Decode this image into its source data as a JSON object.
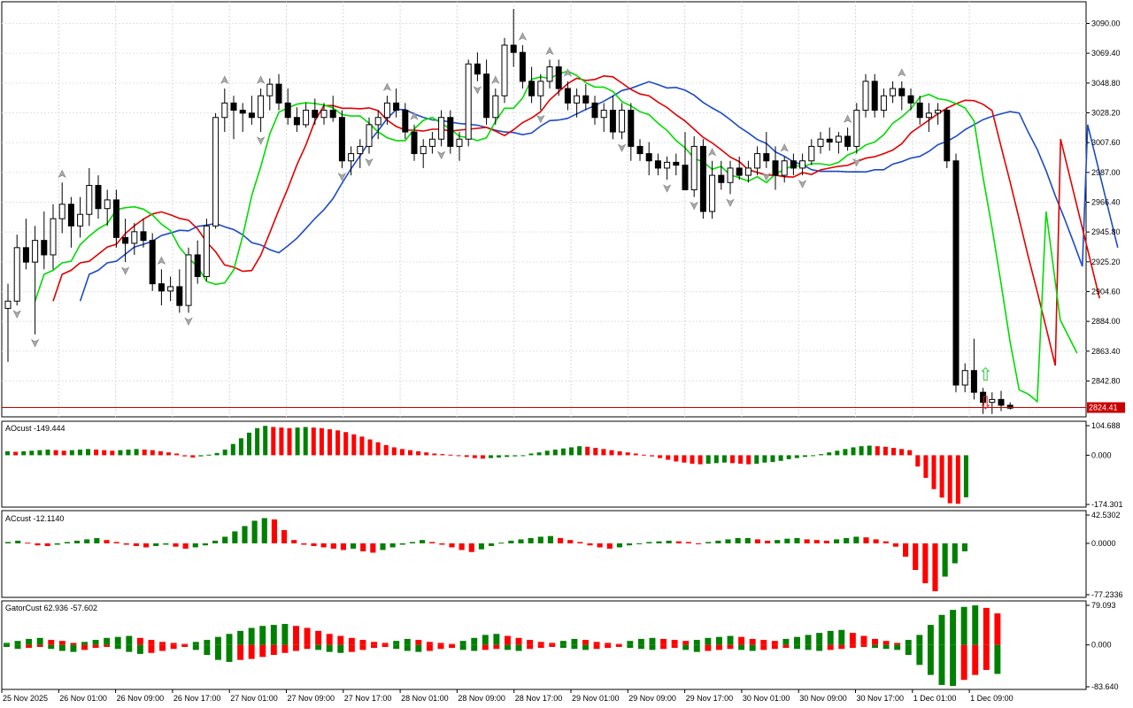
{
  "chart_data": {
    "type": "candlestick",
    "main": {
      "y_ticks": [
        "3090.00",
        "3069.40",
        "3048.80",
        "3028.20",
        "3007.60",
        "2987.00",
        "2966.40",
        "2945.80",
        "2925.20",
        "2904.60",
        "2884.00",
        "2863.40",
        "2842.80"
      ],
      "y_range": [
        2818,
        3105
      ],
      "current_price": "2824.41",
      "candles": [
        [
          2893,
          2910,
          2856,
          2898
        ],
        [
          2898,
          2944,
          2895,
          2935
        ],
        [
          2935,
          2955,
          2920,
          2925
        ],
        [
          2925,
          2950,
          2875,
          2940
        ],
        [
          2940,
          2960,
          2920,
          2930
        ],
        [
          2930,
          2965,
          2920,
          2955
        ],
        [
          2955,
          2980,
          2945,
          2965
        ],
        [
          2965,
          2970,
          2935,
          2950
        ],
        [
          2950,
          2970,
          2942,
          2958
        ],
        [
          2958,
          2990,
          2950,
          2978
        ],
        [
          2978,
          2985,
          2955,
          2962
        ],
        [
          2962,
          2975,
          2950,
          2968
        ],
        [
          2968,
          2975,
          2935,
          2942
        ],
        [
          2942,
          2955,
          2925,
          2938
        ],
        [
          2938,
          2952,
          2930,
          2946
        ],
        [
          2946,
          2955,
          2935,
          2940
        ],
        [
          2940,
          2945,
          2905,
          2910
        ],
        [
          2910,
          2920,
          2895,
          2905
        ],
        [
          2905,
          2915,
          2898,
          2908
        ],
        [
          2908,
          2920,
          2890,
          2895
        ],
        [
          2895,
          2935,
          2890,
          2930
        ],
        [
          2930,
          2940,
          2910,
          2915
        ],
        [
          2915,
          2955,
          2912,
          2950
        ],
        [
          2950,
          3028,
          2948,
          3025
        ],
        [
          3025,
          3045,
          3015,
          3035
        ],
        [
          3035,
          3040,
          3010,
          3030
        ],
        [
          3030,
          3035,
          3015,
          3028
        ],
        [
          3028,
          3040,
          3020,
          3025
        ],
        [
          3025,
          3045,
          3015,
          3040
        ],
        [
          3040,
          3052,
          3030,
          3048
        ],
        [
          3048,
          3055,
          3030,
          3035
        ],
        [
          3035,
          3045,
          3020,
          3025
        ],
        [
          3025,
          3032,
          3015,
          3020
        ],
        [
          3020,
          3035,
          3018,
          3030
        ],
        [
          3030,
          3038,
          3020,
          3025
        ],
        [
          3025,
          3035,
          3020,
          3030
        ],
        [
          3030,
          3040,
          3022,
          3025
        ],
        [
          3025,
          3030,
          2990,
          2995
        ],
        [
          2995,
          3005,
          2985,
          3000
        ],
        [
          3000,
          3010,
          2990,
          3005
        ],
        [
          3005,
          3025,
          3000,
          3020
        ],
        [
          3020,
          3030,
          3010,
          3025
        ],
        [
          3025,
          3040,
          3020,
          3035
        ],
        [
          3035,
          3045,
          3025,
          3030
        ],
        [
          3030,
          3035,
          3010,
          3015
        ],
        [
          3015,
          3020,
          2995,
          3000
        ],
        [
          3000,
          3010,
          2990,
          3005
        ],
        [
          3005,
          3015,
          3000,
          3010
        ],
        [
          3010,
          3030,
          3005,
          3025
        ],
        [
          3025,
          3030,
          3000,
          3005
        ],
        [
          3005,
          3015,
          2995,
          3010
        ],
        [
          3010,
          3065,
          3005,
          3062
        ],
        [
          3062,
          3070,
          3050,
          3055
        ],
        [
          3055,
          3065,
          3020,
          3025
        ],
        [
          3025,
          3045,
          3020,
          3040
        ],
        [
          3040,
          3080,
          3035,
          3075
        ],
        [
          3075,
          3100,
          3060,
          3070
        ],
        [
          3070,
          3075,
          3045,
          3050
        ],
        [
          3050,
          3060,
          3035,
          3040
        ],
        [
          3040,
          3055,
          3030,
          3050
        ],
        [
          3050,
          3065,
          3045,
          3060
        ],
        [
          3060,
          3065,
          3040,
          3045
        ],
        [
          3045,
          3050,
          3030,
          3035
        ],
        [
          3035,
          3045,
          3025,
          3040
        ],
        [
          3040,
          3048,
          3030,
          3035
        ],
        [
          3035,
          3040,
          3020,
          3025
        ],
        [
          3025,
          3035,
          3015,
          3030
        ],
        [
          3030,
          3040,
          3010,
          3015
        ],
        [
          3015,
          3035,
          3010,
          3030
        ],
        [
          3030,
          3035,
          2995,
          3005
        ],
        [
          3005,
          3010,
          2995,
          3000
        ],
        [
          3000,
          3008,
          2985,
          2995
        ],
        [
          2995,
          3000,
          2985,
          2990
        ],
        [
          2990,
          2998,
          2982,
          2994
        ],
        [
          2994,
          3000,
          2985,
          2992
        ],
        [
          2992,
          3015,
          2975,
          2975
        ],
        [
          2975,
          3012,
          2970,
          3005
        ],
        [
          3005,
          3010,
          2955,
          2960
        ],
        [
          2960,
          2995,
          2955,
          2985
        ],
        [
          2985,
          2995,
          2975,
          2980
        ],
        [
          2980,
          2995,
          2972,
          2990
        ],
        [
          2990,
          2998,
          2982,
          2985
        ],
        [
          2985,
          2995,
          2980,
          2990
        ],
        [
          2990,
          3005,
          2985,
          3000
        ],
        [
          3000,
          3015,
          2990,
          2995
        ],
        [
          2995,
          3005,
          2975,
          2985
        ],
        [
          2985,
          2998,
          2980,
          2995
        ],
        [
          2995,
          3000,
          2985,
          2990
        ],
        [
          2990,
          3000,
          2985,
          2995
        ],
        [
          2995,
          3010,
          2992,
          3005
        ],
        [
          3005,
          3015,
          3000,
          3010
        ],
        [
          3010,
          3018,
          3002,
          3008
        ],
        [
          3008,
          3015,
          3000,
          3012
        ],
        [
          3012,
          3018,
          3002,
          3005
        ],
        [
          3005,
          3035,
          3000,
          3030
        ],
        [
          3030,
          3055,
          3025,
          3050
        ],
        [
          3050,
          3055,
          3025,
          3030
        ],
        [
          3030,
          3045,
          3025,
          3040
        ],
        [
          3040,
          3050,
          3035,
          3045
        ],
        [
          3045,
          3050,
          3030,
          3040
        ],
        [
          3040,
          3045,
          3030,
          3035
        ],
        [
          3035,
          3040,
          3020,
          3025
        ],
        [
          3025,
          3035,
          3015,
          3028
        ],
        [
          3028,
          3035,
          3020,
          3030
        ],
        [
          3030,
          3032,
          2990,
          2995
        ],
        [
          2995,
          3000,
          2835,
          2840
        ],
        [
          2840,
          2855,
          2835,
          2850
        ],
        [
          2850,
          2872,
          2830,
          2835
        ],
        [
          2835,
          2838,
          2820,
          2828
        ],
        [
          2828,
          2835,
          2820,
          2830
        ],
        [
          2830,
          2836,
          2822,
          2826
        ],
        [
          2826,
          2828,
          2823,
          2824
        ]
      ],
      "fractal_up_idx": [
        6,
        17,
        24,
        28,
        42,
        45,
        54,
        57,
        60,
        62,
        78,
        86,
        93,
        99
      ],
      "fractal_dn_idx": [
        1,
        3,
        13,
        20,
        28,
        37,
        40,
        48,
        52,
        59,
        68,
        73,
        76,
        80,
        84,
        88,
        94
      ],
      "arrow_up_label": "⇧",
      "arrow_down_label": "⇩",
      "colors": {
        "bull_body": "#ffffff",
        "bear_body": "#000000",
        "jaw": "#1c4bc7",
        "teeth": "#e30000",
        "lips": "#00dc00",
        "price_line": "#c80000",
        "up_arrow": "#2ecc40",
        "down_arrow": "#e02020"
      }
    },
    "ao": {
      "label": "AOcust -149.444",
      "ticks": [
        "104.688",
        "0.000",
        "-174.301"
      ],
      "range": [
        -174.301,
        104.688
      ],
      "values": [
        14,
        12,
        14,
        16,
        18,
        20,
        18,
        16,
        18,
        20,
        22,
        20,
        18,
        16,
        18,
        20,
        22,
        20,
        18,
        14,
        10,
        6,
        -4,
        -8,
        -4,
        2,
        8,
        20,
        40,
        60,
        80,
        96,
        104,
        100,
        98,
        96,
        98,
        100,
        98,
        96,
        92,
        88,
        82,
        74,
        66,
        56,
        46,
        36,
        28,
        22,
        18,
        14,
        10,
        6,
        4,
        2,
        0,
        -6,
        -10,
        -12,
        -10,
        -8,
        -6,
        -4,
        0,
        6,
        10,
        16,
        20,
        24,
        28,
        32,
        30,
        26,
        22,
        18,
        14,
        10,
        6,
        2,
        -4,
        -10,
        -16,
        -22,
        -26,
        -30,
        -32,
        -30,
        -28,
        -26,
        -28,
        -30,
        -32,
        -30,
        -26,
        -24,
        -20,
        -14,
        -10,
        -6,
        -2,
        4,
        10,
        16,
        22,
        28,
        32,
        34,
        32,
        30,
        26,
        22,
        18,
        -40,
        -80,
        -120,
        -150,
        -170,
        -172,
        -149
      ],
      "colors": {
        "up": "#008000",
        "down": "#ff0000"
      }
    },
    "ac": {
      "label": "ACcust -12.1140",
      "ticks": [
        "42.5302",
        "0.0000",
        "-77.2336"
      ],
      "range": [
        -77.2336,
        42.5302
      ],
      "values": [
        2,
        4,
        1,
        -3,
        -4,
        -2,
        2,
        4,
        6,
        8,
        5,
        2,
        -2,
        -4,
        -6,
        -4,
        -2,
        -5,
        -8,
        -6,
        -3,
        4,
        10,
        18,
        26,
        34,
        38,
        36,
        20,
        5,
        -2,
        -4,
        -6,
        -8,
        -10,
        -8,
        -12,
        -14,
        -10,
        -6,
        -2,
        2,
        5,
        2,
        -2,
        -6,
        -10,
        -13,
        -9,
        -4,
        1,
        4,
        6,
        8,
        10,
        11,
        8,
        5,
        2,
        -3,
        -6,
        -8,
        -6,
        -3,
        0,
        2,
        3,
        4,
        3,
        2,
        0,
        2,
        4,
        6,
        8,
        8,
        6,
        4,
        5,
        7,
        8,
        6,
        5,
        4,
        6,
        8,
        10,
        9,
        6,
        3,
        -5,
        -20,
        -40,
        -60,
        -72,
        -50,
        -30,
        -12
      ],
      "colors": {
        "up": "#008000",
        "down": "#ff0000"
      }
    },
    "gator": {
      "label": "GatorCust 62.936 -57.602",
      "ticks": [
        "79.093",
        "0.000",
        "-83.640"
      ],
      "range": [
        -83.64,
        79.093
      ],
      "upper": [
        4,
        8,
        12,
        14,
        10,
        8,
        4,
        6,
        10,
        14,
        16,
        18,
        14,
        10,
        6,
        4,
        2,
        6,
        10,
        16,
        22,
        28,
        34,
        38,
        40,
        42,
        38,
        34,
        28,
        22,
        18,
        14,
        10,
        6,
        4,
        8,
        12,
        10,
        6,
        4,
        2,
        8,
        14,
        20,
        22,
        18,
        14,
        10,
        6,
        4,
        8,
        12,
        10,
        6,
        4,
        2,
        8,
        12,
        14,
        12,
        10,
        8,
        10,
        14,
        16,
        18,
        16,
        12,
        10,
        8,
        12,
        16,
        20,
        24,
        28,
        30,
        24,
        18,
        12,
        8,
        4,
        10,
        20,
        40,
        60,
        70,
        76,
        79,
        74,
        63
      ],
      "lower": [
        -4,
        -8,
        -6,
        -4,
        -8,
        -12,
        -14,
        -10,
        -6,
        -4,
        -8,
        -14,
        -18,
        -16,
        -12,
        -8,
        -4,
        -10,
        -20,
        -30,
        -34,
        -30,
        -28,
        -24,
        -20,
        -16,
        -12,
        -8,
        -10,
        -14,
        -16,
        -14,
        -10,
        -6,
        -4,
        -8,
        -12,
        -14,
        -12,
        -8,
        -6,
        -10,
        -12,
        -10,
        -8,
        -10,
        -12,
        -8,
        -6,
        -4,
        -6,
        -8,
        -10,
        -8,
        -6,
        -4,
        -6,
        -8,
        -10,
        -8,
        -6,
        -10,
        -14,
        -12,
        -10,
        -8,
        -10,
        -12,
        -10,
        -8,
        -6,
        -8,
        -10,
        -12,
        -10,
        -8,
        -6,
        -4,
        -6,
        -8,
        -10,
        -20,
        -40,
        -60,
        -80,
        -82,
        -70,
        -60,
        -50,
        -58
      ],
      "colors": {
        "up": "#008000",
        "down": "#ff0000"
      }
    },
    "x_labels": [
      "25 Nov 2025",
      "26 Nov 01:00",
      "26 Nov 09:00",
      "26 Nov 17:00",
      "27 Nov 01:00",
      "27 Nov 09:00",
      "27 Nov 17:00",
      "28 Nov 01:00",
      "28 Nov 09:00",
      "28 Nov 17:00",
      "29 Nov 01:00",
      "29 Nov 09:00",
      "29 Nov 17:00",
      "30 Nov 01:00",
      "30 Nov 09:00",
      "30 Nov 17:00",
      "1 Dec 01:00",
      "1 Dec 09:00"
    ]
  }
}
